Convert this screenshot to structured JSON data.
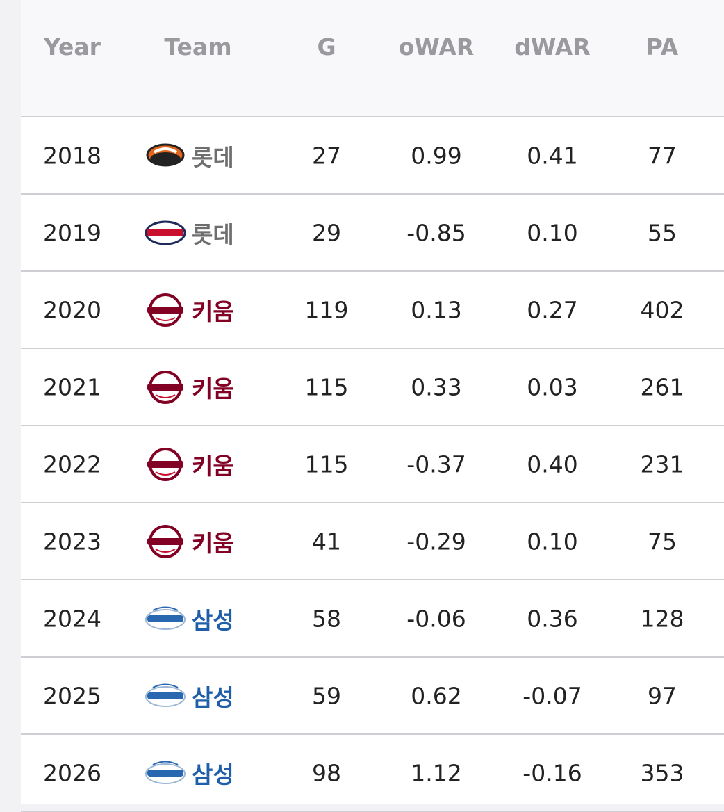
{
  "header": {
    "columns": [
      "Year",
      "Team",
      "G",
      "oWAR",
      "dWAR",
      "PA"
    ]
  },
  "table": {
    "rows": [
      [
        "2018",
        "롯데",
        "27",
        "0.99",
        "0.41",
        "77"
      ],
      [
        "2019",
        "롯데",
        "29",
        "-0.85",
        "0.10",
        "55"
      ],
      [
        "2020",
        "키움",
        "119",
        "0.13",
        "0.27",
        "402"
      ],
      [
        "2021",
        "키움",
        "115",
        "0.33",
        "0.03",
        "261"
      ],
      [
        "2022",
        "키움",
        "115",
        "-0.37",
        "0.40",
        "231"
      ],
      [
        "2023",
        "키움",
        "41",
        "-0.29",
        "0.10",
        "75"
      ],
      [
        "2024",
        "삼성",
        "58",
        "-0.06",
        "0.36",
        "128"
      ],
      [
        "2025",
        "삼성",
        "59",
        "0.62",
        "-0.07",
        "97"
      ],
      [
        "2026",
        "삼성",
        "98",
        "1.12",
        "-0.16",
        "353"
      ]
    ]
  }
}
